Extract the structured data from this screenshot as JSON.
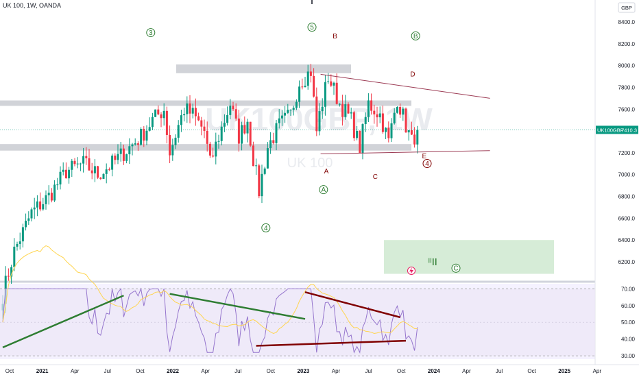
{
  "header": {
    "symbol_line": "UK 100, 1W, OANDA"
  },
  "currency_badge": "GBP",
  "watermark": {
    "ticker": "UK100GBP, 1W",
    "name": "UK 100"
  },
  "last_price": {
    "ticker": "UK100GBP",
    "value": "7410.3",
    "price": 7410.3,
    "color": "#089981"
  },
  "colors": {
    "up": "#089981",
    "down": "#f23645",
    "rsi_line": "#9575cd",
    "rsi_ma": "#ffd54f"
  },
  "chart_data": [
    {
      "type": "candlestick",
      "interval": "1W",
      "y_axis": {
        "ticks": [
          6200,
          6400,
          6600,
          6800,
          7000,
          7200,
          7400,
          7600,
          7800,
          8000,
          8200,
          8400
        ],
        "tick_labels": [
          "6200.0",
          "6400.0",
          "6600.0",
          "6800.0",
          "7000.0",
          "7200.0",
          "7400.0",
          "7600.0",
          "7800.0",
          "8000.0",
          "8200.0",
          "8400.0"
        ]
      },
      "x_axis": {
        "tick_labels": [
          "Oct",
          "2021",
          "Apr",
          "Jul",
          "Oct",
          "2022",
          "Apr",
          "Jul",
          "Oct",
          "2023",
          "Apr",
          "Jul",
          "Oct",
          "2024",
          "Apr",
          "Jul",
          "Oct",
          "2025",
          "Apr"
        ]
      },
      "close_anchors": [
        {
          "week": 0,
          "close": 5900
        },
        {
          "week": 4,
          "close": 6300
        },
        {
          "week": 10,
          "close": 6650
        },
        {
          "week": 16,
          "close": 6800
        },
        {
          "week": 22,
          "close": 7030
        },
        {
          "week": 28,
          "close": 7100
        },
        {
          "week": 33,
          "close": 7000
        },
        {
          "week": 38,
          "close": 7100
        },
        {
          "week": 44,
          "close": 7250
        },
        {
          "week": 48,
          "close": 7350
        },
        {
          "week": 52,
          "close": 7500
        },
        {
          "week": 56,
          "close": 7600
        },
        {
          "week": 58,
          "close": 7200
        },
        {
          "week": 61,
          "close": 7450
        },
        {
          "week": 63,
          "close": 7600
        },
        {
          "week": 66,
          "close": 7550
        },
        {
          "week": 70,
          "close": 7400
        },
        {
          "week": 72,
          "close": 7100
        },
        {
          "week": 75,
          "close": 7350
        },
        {
          "week": 79,
          "close": 7650
        },
        {
          "week": 82,
          "close": 7350
        },
        {
          "week": 85,
          "close": 7500
        },
        {
          "week": 87,
          "close": 7150
        },
        {
          "week": 89,
          "close": 6850
        },
        {
          "week": 92,
          "close": 7250
        },
        {
          "week": 96,
          "close": 7450
        },
        {
          "week": 100,
          "close": 7550
        },
        {
          "week": 103,
          "close": 7850
        },
        {
          "week": 107,
          "close": 7950
        },
        {
          "week": 109,
          "close": 7400
        },
        {
          "week": 110,
          "close": 7550
        },
        {
          "week": 113,
          "close": 7900
        },
        {
          "week": 117,
          "close": 7650
        },
        {
          "week": 121,
          "close": 7500
        },
        {
          "week": 124,
          "close": 7250
        },
        {
          "week": 127,
          "close": 7650
        },
        {
          "week": 131,
          "close": 7550
        },
        {
          "week": 134,
          "close": 7300
        },
        {
          "week": 137,
          "close": 7700
        },
        {
          "week": 140,
          "close": 7450
        },
        {
          "week": 142,
          "close": 7300
        },
        {
          "week": 144,
          "close": 7410
        }
      ],
      "zones": [
        {
          "from": 7930,
          "to": 8010,
          "label": ""
        },
        {
          "from": 7630,
          "to": 7680,
          "label": ""
        },
        {
          "from": 7220,
          "to": 7280,
          "label": ""
        },
        {
          "from": 6090,
          "to": 6400,
          "label": ""
        }
      ],
      "trendlines": [
        {
          "from": {
            "week": 108,
            "price": 7920
          },
          "to": {
            "week": 168,
            "price": 7700
          }
        },
        {
          "from": {
            "week": 108,
            "price": 7190
          },
          "to": {
            "week": 168,
            "price": 7220
          }
        }
      ],
      "wave_labels": [
        {
          "text": "3",
          "circled": true,
          "color": "#2e7d32",
          "week": 49,
          "price": 8280
        },
        {
          "text": "5",
          "circled": true,
          "color": "#2e7d32",
          "week": 105,
          "price": 8330
        },
        {
          "text": "B",
          "circled": false,
          "color": "#800000",
          "week": 113,
          "price": 8250
        },
        {
          "text": "B",
          "circled": true,
          "color": "#2e7d32",
          "week": 141,
          "price": 8250
        },
        {
          "text": "D",
          "circled": false,
          "color": "#800000",
          "week": 140,
          "price": 7900
        },
        {
          "text": "A",
          "circled": false,
          "color": "#800000",
          "week": 110,
          "price": 7010
        },
        {
          "text": "C",
          "circled": false,
          "color": "#800000",
          "week": 127,
          "price": 6960
        },
        {
          "text": "E",
          "circled": false,
          "color": "#800000",
          "week": 144,
          "price": 7150
        },
        {
          "text": "4",
          "circled": true,
          "color": "#800000",
          "week": 145,
          "price": 7080
        },
        {
          "text": "A",
          "circled": true,
          "color": "#2e7d32",
          "week": 109,
          "price": 6840
        },
        {
          "text": "4",
          "circled": true,
          "color": "#2e7d32",
          "week": 89,
          "price": 6490
        },
        {
          "text": "C",
          "circled": true,
          "color": "#2e7d32",
          "week": 155,
          "price": 6120
        },
        {
          "text": "II",
          "circled": false,
          "color": "#2e7d32",
          "week": 146,
          "price": 6190
        }
      ]
    },
    {
      "type": "line",
      "name": "",
      "y_axis": {
        "ticks": [
          30,
          40,
          50,
          60,
          70
        ],
        "tick_labels": [
          "30.00",
          "40.00",
          "50.00",
          "60.00",
          "70.00"
        ],
        "ylim": [
          28,
          73
        ]
      },
      "bands": [
        30,
        70
      ],
      "trendlines": [
        {
          "color": "#2e7d32",
          "from": {
            "week": 0,
            "value": 35
          },
          "to": {
            "week": 42,
            "value": 66
          }
        },
        {
          "color": "#2e7d32",
          "from": {
            "week": 58,
            "value": 67
          },
          "to": {
            "week": 105,
            "value": 52
          }
        },
        {
          "color": "#800000",
          "from": {
            "week": 105,
            "value": 68
          },
          "to": {
            "week": 138,
            "value": 53
          }
        },
        {
          "color": "#800000",
          "from": {
            "week": 88,
            "value": 36
          },
          "to": {
            "week": 140,
            "value": 39
          }
        }
      ]
    }
  ]
}
